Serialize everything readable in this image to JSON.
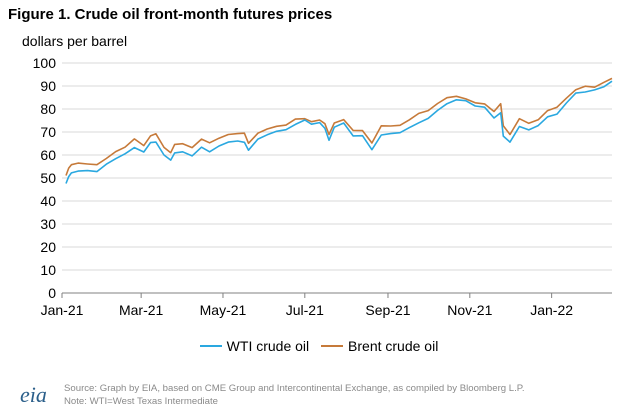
{
  "header": {
    "title": "Figure 1. Crude oil front-month futures prices",
    "units": "dollars per barrel"
  },
  "footer": {
    "logo_text": "eia",
    "source": "Source: Graph by EIA, based on CME Group and Intercontinental Exchange, as compiled by Bloomberg L.P.",
    "note": "Note: WTI=West Texas Intermediate"
  },
  "colors": {
    "wti": "#2aa8e0",
    "brent": "#c67a3a",
    "grid": "#d9d9d9",
    "axis": "#808080"
  },
  "chart_data": {
    "type": "line",
    "title": "Figure 1. Crude oil front-month futures prices",
    "ylabel": "dollars per barrel",
    "ylim": [
      0,
      100
    ],
    "yticks": [
      0,
      10,
      20,
      30,
      40,
      50,
      60,
      70,
      80,
      90,
      100
    ],
    "xlim": [
      "2021-01-04",
      "2022-02-15"
    ],
    "xticks": [
      {
        "date": "2021-01-01",
        "label": "Jan-21"
      },
      {
        "date": "2021-03-01",
        "label": "Mar-21"
      },
      {
        "date": "2021-05-01",
        "label": "May-21"
      },
      {
        "date": "2021-07-01",
        "label": "Jul-21"
      },
      {
        "date": "2021-09-01",
        "label": "Sep-21"
      },
      {
        "date": "2021-11-01",
        "label": "Nov-21"
      },
      {
        "date": "2022-01-01",
        "label": "Jan-22"
      }
    ],
    "grid": true,
    "legend_position": "bottom",
    "x": [
      "2021-01-04",
      "2021-01-06",
      "2021-01-08",
      "2021-01-13",
      "2021-01-20",
      "2021-01-27",
      "2021-02-03",
      "2021-02-10",
      "2021-02-17",
      "2021-02-24",
      "2021-03-03",
      "2021-03-08",
      "2021-03-12",
      "2021-03-18",
      "2021-03-23",
      "2021-03-26",
      "2021-04-01",
      "2021-04-08",
      "2021-04-15",
      "2021-04-21",
      "2021-04-28",
      "2021-05-05",
      "2021-05-12",
      "2021-05-17",
      "2021-05-20",
      "2021-05-27",
      "2021-06-03",
      "2021-06-10",
      "2021-06-17",
      "2021-06-24",
      "2021-07-01",
      "2021-07-06",
      "2021-07-12",
      "2021-07-16",
      "2021-07-19",
      "2021-07-23",
      "2021-07-30",
      "2021-08-06",
      "2021-08-13",
      "2021-08-20",
      "2021-08-27",
      "2021-09-03",
      "2021-09-10",
      "2021-09-17",
      "2021-09-24",
      "2021-10-01",
      "2021-10-08",
      "2021-10-15",
      "2021-10-22",
      "2021-10-29",
      "2021-11-05",
      "2021-11-12",
      "2021-11-19",
      "2021-11-24",
      "2021-11-26",
      "2021-12-01",
      "2021-12-08",
      "2021-12-15",
      "2021-12-22",
      "2021-12-29",
      "2022-01-05",
      "2022-01-12",
      "2022-01-19",
      "2022-01-26",
      "2022-02-02",
      "2022-02-09",
      "2022-02-15"
    ],
    "series": [
      {
        "name": "WTI crude oil",
        "color": "#2aa8e0",
        "values": [
          47.6,
          50.6,
          52.2,
          53.0,
          53.2,
          52.8,
          56.0,
          58.4,
          60.5,
          63.2,
          61.3,
          65.4,
          65.6,
          60.0,
          57.8,
          60.9,
          61.4,
          59.6,
          63.4,
          61.4,
          63.9,
          65.6,
          66.1,
          65.5,
          62.1,
          66.9,
          68.8,
          70.3,
          71.0,
          73.3,
          75.2,
          73.4,
          74.1,
          71.6,
          66.4,
          72.1,
          73.9,
          68.3,
          68.4,
          62.3,
          68.7,
          69.3,
          69.7,
          71.9,
          74.0,
          75.9,
          79.4,
          82.3,
          84.0,
          83.6,
          81.3,
          80.8,
          76.1,
          78.4,
          68.2,
          65.6,
          72.4,
          70.9,
          72.8,
          76.6,
          77.8,
          82.6,
          86.9,
          87.4,
          88.3,
          89.7,
          92.1
        ]
      },
      {
        "name": "Brent crude oil",
        "color": "#c67a3a",
        "values": [
          51.1,
          54.3,
          55.8,
          56.5,
          56.1,
          55.8,
          58.5,
          61.5,
          63.4,
          67.0,
          64.1,
          68.3,
          69.2,
          63.3,
          61.0,
          64.6,
          64.9,
          63.2,
          66.9,
          65.3,
          67.3,
          68.9,
          69.3,
          69.5,
          65.1,
          69.5,
          71.3,
          72.5,
          73.0,
          75.6,
          75.8,
          74.5,
          75.2,
          73.6,
          68.9,
          73.9,
          75.4,
          70.7,
          70.6,
          65.2,
          72.7,
          72.6,
          72.9,
          75.3,
          78.1,
          79.3,
          82.4,
          84.9,
          85.5,
          84.4,
          82.7,
          82.2,
          78.9,
          82.3,
          72.7,
          68.9,
          75.8,
          73.8,
          75.3,
          79.3,
          80.8,
          84.7,
          88.4,
          89.9,
          89.5,
          91.6,
          93.3
        ]
      }
    ]
  }
}
